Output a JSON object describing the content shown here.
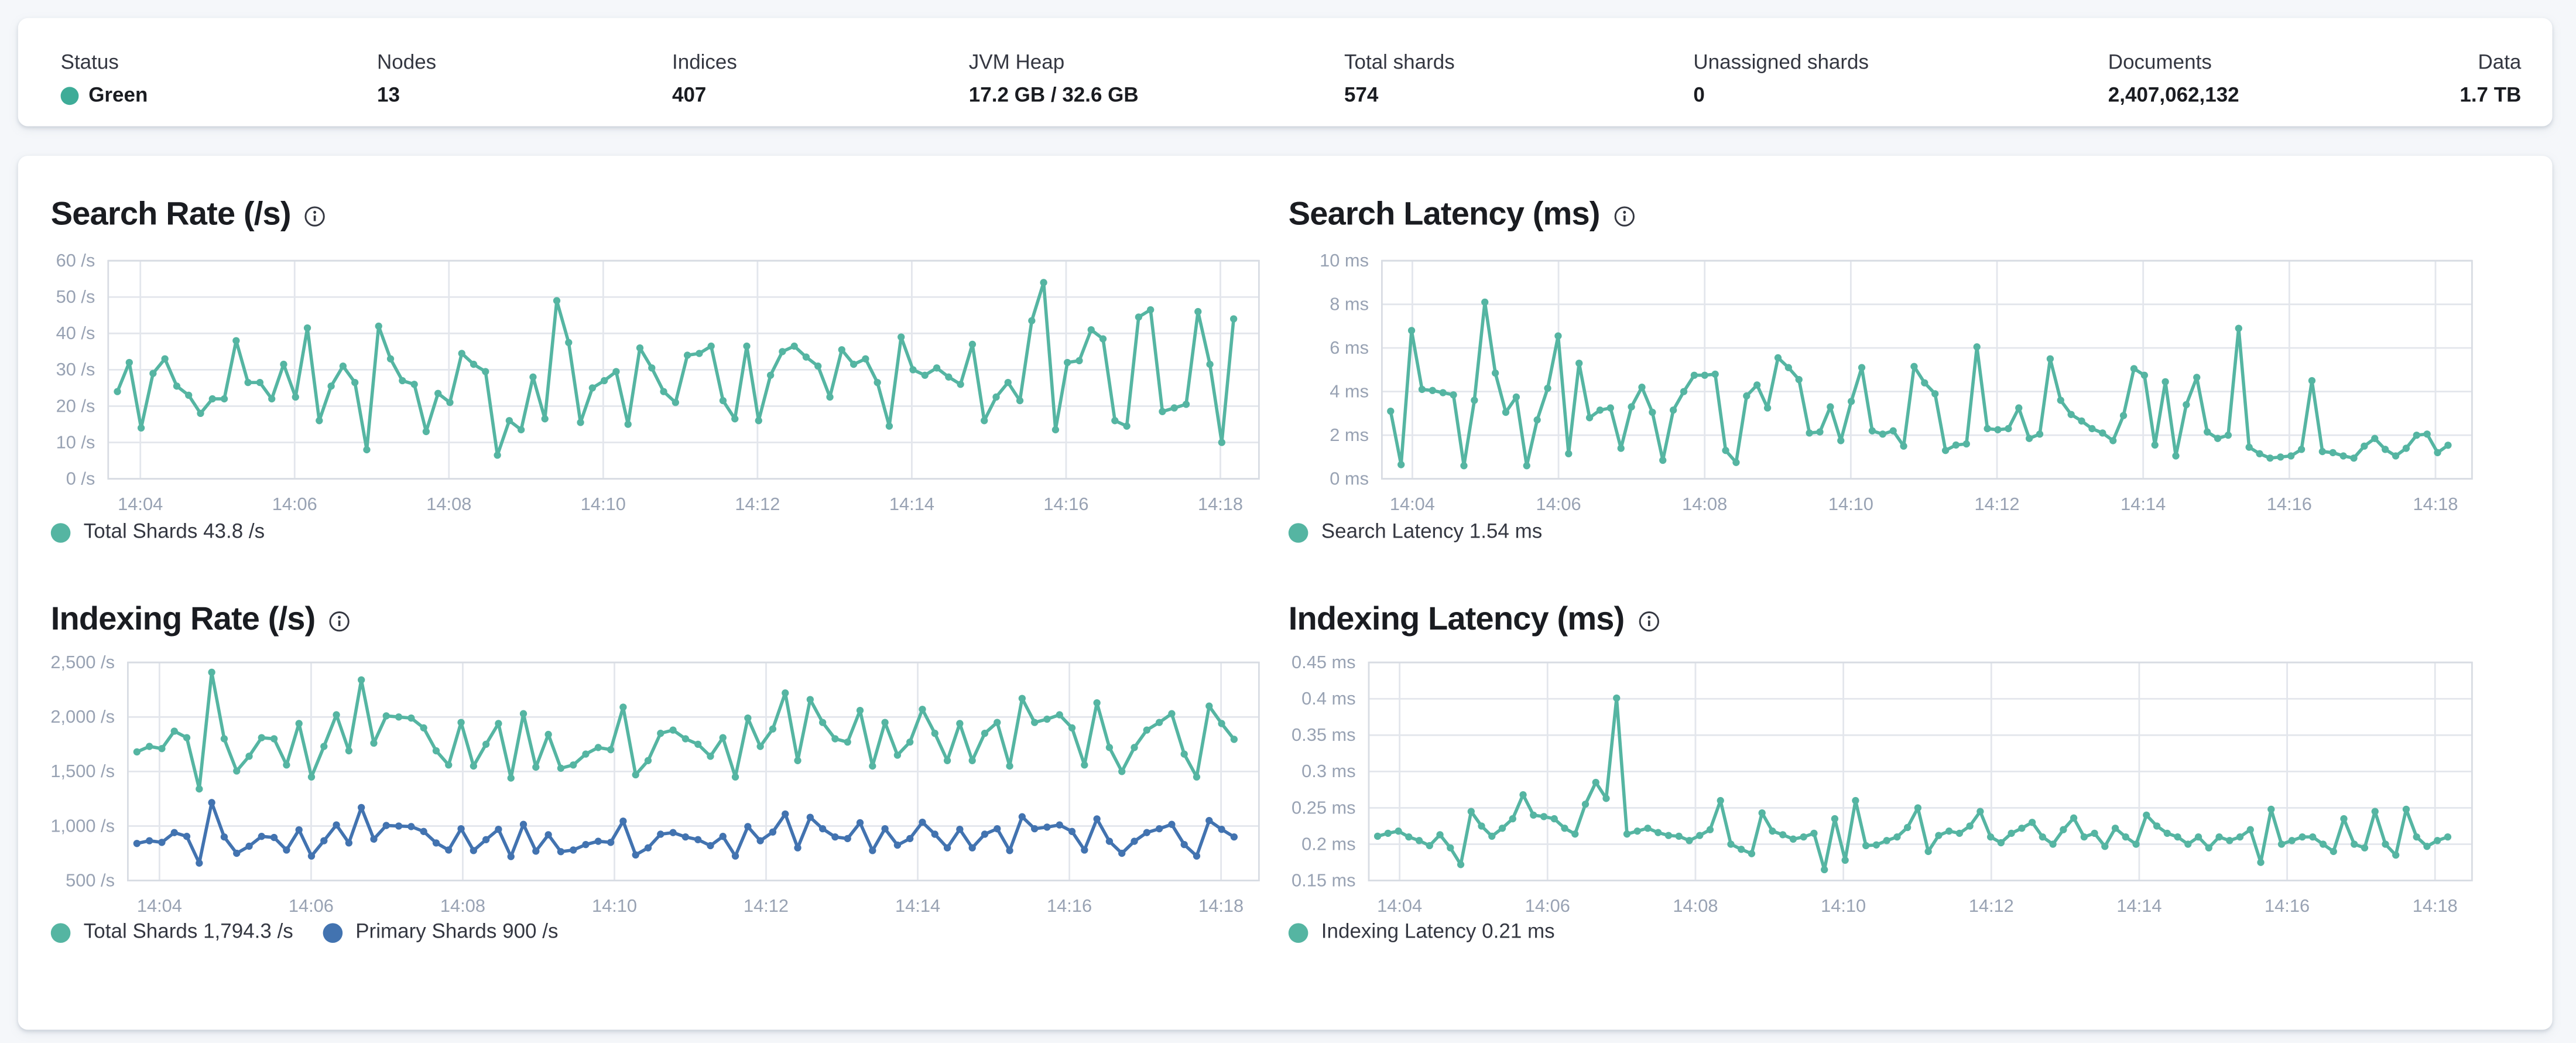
{
  "header": {
    "stats": [
      {
        "label": "Status",
        "value": "Green",
        "dot_color": "#3eac98"
      },
      {
        "label": "Nodes",
        "value": "13"
      },
      {
        "label": "Indices",
        "value": "407"
      },
      {
        "label": "JVM Heap",
        "value": "17.2 GB / 32.6 GB"
      },
      {
        "label": "Total shards",
        "value": "574"
      },
      {
        "label": "Unassigned shards",
        "value": "0"
      },
      {
        "label": "Documents",
        "value": "2,407,062,132"
      },
      {
        "label": "Data",
        "value": "1.7 TB"
      }
    ]
  },
  "colors": {
    "teal_series": "#55b5a2",
    "blue_series": "#4273b0",
    "status_green": "#3eac98",
    "grid": "#e3e6ec",
    "border": "#d8dce3",
    "tick_label": "#98a2b3"
  },
  "chart_data": [
    {
      "id": "search-rate",
      "type": "line",
      "title": "Search Rate (/s)",
      "info_icon": "info-icon",
      "y_domain": [
        0,
        60
      ],
      "y_ticks": [
        60,
        50,
        40,
        30,
        20,
        10,
        0
      ],
      "y_tick_labels": [
        "60 /s",
        "50 /s",
        "40 /s",
        "30 /s",
        "20 /s",
        "10 /s",
        "0 /s"
      ],
      "x_tick_labels": [
        "14:04",
        "14:06",
        "14:08",
        "14:10",
        "14:12",
        "14:14",
        "14:16",
        "14:18"
      ],
      "legend": [
        {
          "label": "Total Shards 43.8 /s",
          "color": "#55b5a2"
        }
      ],
      "series": [
        {
          "name": "Total Shards",
          "color": "#55b5a2",
          "values": [
            24,
            32,
            14,
            29,
            33,
            25.5,
            23,
            18,
            22,
            22,
            38,
            26.5,
            26.5,
            22,
            31.5,
            22.5,
            41.5,
            16,
            25.5,
            31,
            26.5,
            8,
            42,
            33,
            27,
            26,
            13,
            23.5,
            21,
            34.5,
            31.5,
            29.5,
            6.5,
            16,
            13.5,
            28,
            16.5,
            49,
            37.5,
            15.5,
            25,
            27,
            29.5,
            15,
            36,
            30.5,
            24,
            21,
            34,
            34.5,
            36.5,
            21.5,
            16.5,
            36.5,
            16,
            28.5,
            35,
            36.5,
            33.5,
            31,
            22.5,
            35.5,
            31.5,
            33,
            26.5,
            14.5,
            39,
            30,
            28.5,
            30.5,
            28,
            26,
            37,
            16,
            22.5,
            26.5,
            21.5,
            43.5,
            54,
            13.5,
            32,
            32.5,
            41,
            38.5,
            16,
            14.5,
            44.5,
            46.5,
            18.5,
            19.5,
            20.5,
            46,
            31.5,
            10,
            44
          ]
        }
      ]
    },
    {
      "id": "search-latency",
      "type": "line",
      "title": "Search Latency (ms)",
      "info_icon": "info-icon",
      "y_domain": [
        0,
        10
      ],
      "y_ticks": [
        10,
        8,
        6,
        4,
        2,
        0
      ],
      "y_tick_labels": [
        "10 ms",
        "8 ms",
        "6 ms",
        "4 ms",
        "2 ms",
        "0 ms"
      ],
      "x_tick_labels": [
        "14:04",
        "14:06",
        "14:08",
        "14:10",
        "14:12",
        "14:14",
        "14:16",
        "14:18"
      ],
      "legend": [
        {
          "label": "Search Latency 1.54 ms",
          "color": "#55b5a2"
        }
      ],
      "series": [
        {
          "name": "Search Latency",
          "color": "#55b5a2",
          "values": [
            3.1,
            0.65,
            6.8,
            4.1,
            4.05,
            3.95,
            3.85,
            0.6,
            3.6,
            8.1,
            4.85,
            3.05,
            3.75,
            0.6,
            2.7,
            4.15,
            6.55,
            1.15,
            5.3,
            2.8,
            3.15,
            3.25,
            1.4,
            3.3,
            4.2,
            3.05,
            0.85,
            3.15,
            4.0,
            4.75,
            4.75,
            4.8,
            1.3,
            0.75,
            3.8,
            4.3,
            3.25,
            5.55,
            5.1,
            4.55,
            2.1,
            2.15,
            3.3,
            1.75,
            3.55,
            5.1,
            2.2,
            2.05,
            2.2,
            1.5,
            5.15,
            4.4,
            3.9,
            1.3,
            1.55,
            1.6,
            6.05,
            2.3,
            2.25,
            2.3,
            3.25,
            1.85,
            2.05,
            5.5,
            3.6,
            2.95,
            2.65,
            2.3,
            2.1,
            1.75,
            2.9,
            5.05,
            4.75,
            1.55,
            4.45,
            1.05,
            3.4,
            4.65,
            2.15,
            1.85,
            2.0,
            6.9,
            1.45,
            1.15,
            0.95,
            1.0,
            1.05,
            1.35,
            4.5,
            1.25,
            1.2,
            1.05,
            0.95,
            1.5,
            1.85,
            1.35,
            1.05,
            1.4,
            2.0,
            2.05,
            1.2,
            1.54
          ]
        }
      ]
    },
    {
      "id": "indexing-rate",
      "type": "line",
      "title": "Indexing Rate (/s)",
      "info_icon": "info-icon",
      "y_domain": [
        500,
        2500
      ],
      "y_ticks": [
        2500,
        2000,
        1500,
        1000,
        500
      ],
      "y_tick_labels": [
        "2,500 /s",
        "2,000 /s",
        "1,500 /s",
        "1,000 /s",
        "500 /s"
      ],
      "x_tick_labels": [
        "14:04",
        "14:06",
        "14:08",
        "14:10",
        "14:12",
        "14:14",
        "14:16",
        "14:18"
      ],
      "legend": [
        {
          "label": "Total Shards 1,794.3 /s",
          "color": "#55b5a2"
        },
        {
          "label": "Primary Shards 900 /s",
          "color": "#4273b0"
        }
      ],
      "series": [
        {
          "name": "Total Shards",
          "color": "#55b5a2",
          "values": [
            1680,
            1730,
            1710,
            1870,
            1810,
            1340,
            2410,
            1800,
            1505,
            1640,
            1810,
            1800,
            1560,
            1940,
            1450,
            1730,
            2020,
            1690,
            2340,
            1760,
            2010,
            2000,
            1990,
            1900,
            1690,
            1560,
            1950,
            1550,
            1750,
            1940,
            1440,
            2030,
            1540,
            1840,
            1530,
            1560,
            1660,
            1720,
            1700,
            2090,
            1470,
            1600,
            1850,
            1880,
            1800,
            1750,
            1640,
            1810,
            1450,
            1990,
            1730,
            1890,
            2220,
            1600,
            2160,
            1950,
            1800,
            1770,
            2060,
            1550,
            1950,
            1650,
            1770,
            2070,
            1850,
            1600,
            1940,
            1600,
            1850,
            1950,
            1550,
            2170,
            1950,
            1980,
            2020,
            1900,
            1560,
            2130,
            1720,
            1500,
            1720,
            1880,
            1950,
            2030,
            1660,
            1450,
            2100,
            1940,
            1795
          ]
        },
        {
          "name": "Primary Shards",
          "color": "#4273b0",
          "values": [
            840,
            865,
            850,
            940,
            905,
            660,
            1215,
            900,
            750,
            815,
            905,
            895,
            780,
            965,
            725,
            865,
            1010,
            845,
            1170,
            880,
            1005,
            1000,
            995,
            950,
            845,
            780,
            975,
            775,
            875,
            970,
            720,
            1015,
            770,
            920,
            765,
            780,
            830,
            860,
            850,
            1045,
            735,
            800,
            925,
            940,
            900,
            875,
            820,
            905,
            725,
            995,
            865,
            945,
            1110,
            800,
            1080,
            975,
            900,
            885,
            1030,
            775,
            975,
            825,
            885,
            1035,
            925,
            800,
            970,
            800,
            925,
            975,
            775,
            1085,
            975,
            990,
            1010,
            950,
            780,
            1065,
            860,
            750,
            860,
            940,
            975,
            1015,
            830,
            725,
            1050,
            970,
            900
          ]
        }
      ]
    },
    {
      "id": "indexing-latency",
      "type": "line",
      "title": "Indexing Latency (ms)",
      "info_icon": "info-icon",
      "y_domain": [
        0.15,
        0.45
      ],
      "y_ticks": [
        0.45,
        0.4,
        0.35,
        0.3,
        0.25,
        0.2,
        0.15
      ],
      "y_tick_labels": [
        "0.45 ms",
        "0.4 ms",
        "0.35 ms",
        "0.3 ms",
        "0.25 ms",
        "0.2 ms",
        "0.15 ms"
      ],
      "x_tick_labels": [
        "14:04",
        "14:06",
        "14:08",
        "14:10",
        "14:12",
        "14:14",
        "14:16",
        "14:18"
      ],
      "legend": [
        {
          "label": "Indexing Latency 0.21 ms",
          "color": "#55b5a2"
        }
      ],
      "series": [
        {
          "name": "Indexing Latency",
          "color": "#55b5a2",
          "values": [
            0.211,
            0.215,
            0.218,
            0.21,
            0.205,
            0.198,
            0.213,
            0.195,
            0.172,
            0.245,
            0.225,
            0.211,
            0.222,
            0.235,
            0.268,
            0.24,
            0.238,
            0.235,
            0.222,
            0.214,
            0.255,
            0.285,
            0.263,
            0.401,
            0.214,
            0.218,
            0.222,
            0.216,
            0.212,
            0.211,
            0.205,
            0.212,
            0.22,
            0.26,
            0.2,
            0.193,
            0.187,
            0.243,
            0.218,
            0.213,
            0.207,
            0.21,
            0.215,
            0.165,
            0.235,
            0.178,
            0.26,
            0.198,
            0.199,
            0.205,
            0.21,
            0.223,
            0.25,
            0.19,
            0.212,
            0.218,
            0.215,
            0.225,
            0.245,
            0.21,
            0.202,
            0.215,
            0.222,
            0.23,
            0.21,
            0.2,
            0.22,
            0.236,
            0.21,
            0.215,
            0.197,
            0.222,
            0.21,
            0.2,
            0.24,
            0.225,
            0.215,
            0.21,
            0.2,
            0.21,
            0.195,
            0.21,
            0.205,
            0.21,
            0.22,
            0.175,
            0.248,
            0.2,
            0.205,
            0.21,
            0.21,
            0.2,
            0.19,
            0.235,
            0.2,
            0.195,
            0.245,
            0.2,
            0.185,
            0.248,
            0.21,
            0.197,
            0.205,
            0.21
          ]
        }
      ]
    }
  ]
}
